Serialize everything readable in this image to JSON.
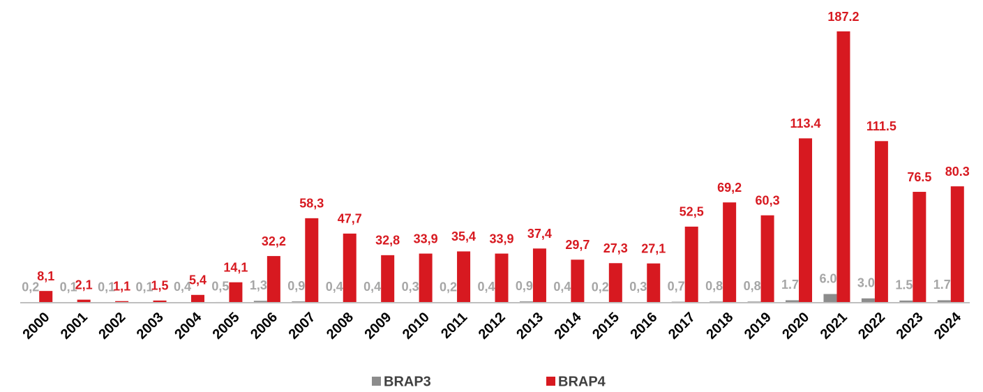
{
  "chart_data": {
    "type": "bar",
    "categories": [
      "2000",
      "2001",
      "2002",
      "2003",
      "2004",
      "2005",
      "2006",
      "2007",
      "2008",
      "2009",
      "2010",
      "2011",
      "2012",
      "2013",
      "2014",
      "2015",
      "2016",
      "2017",
      "2018",
      "2019",
      "2020",
      "2021",
      "2022",
      "2023",
      "2024"
    ],
    "series": [
      {
        "name": "BRAP3",
        "color": "#8c8c8c",
        "label_color": "#a6a6a6",
        "values": [
          0.2,
          0.1,
          0.1,
          0.1,
          0.4,
          0.5,
          1.3,
          0.9,
          0.4,
          0.4,
          0.3,
          0.2,
          0.4,
          0.9,
          0.4,
          0.2,
          0.3,
          0.7,
          0.8,
          0.8,
          1.7,
          6.0,
          3.0,
          1.5,
          1.7
        ],
        "value_labels": [
          "0,2",
          "0,1",
          "0,1",
          "0,1",
          "0,4",
          "0,5",
          "1,3",
          "0,9",
          "0,4",
          "0,4",
          "0,3",
          "0,2",
          "0,4",
          "0,9",
          "0,4",
          "0,2",
          "0,3",
          "0,7",
          "0,8",
          "0,8",
          "1.7",
          "6.0",
          "3.0",
          "1.5",
          "1.7"
        ]
      },
      {
        "name": "BRAP4",
        "color": "#d71920",
        "label_color": "#d71920",
        "values": [
          8.1,
          2.1,
          1.1,
          1.5,
          5.4,
          14.1,
          32.2,
          58.3,
          47.7,
          32.8,
          33.9,
          35.4,
          33.9,
          37.4,
          29.7,
          27.3,
          27.1,
          52.5,
          69.2,
          60.3,
          113.4,
          187.2,
          111.5,
          76.5,
          80.3
        ],
        "value_labels": [
          "8,1",
          "2,1",
          "1,1",
          "1,5",
          "5,4",
          "14,1",
          "32,2",
          "58,3",
          "47,7",
          "32,8",
          "33,9",
          "35,4",
          "33,9",
          "37,4",
          "29,7",
          "27,3",
          "27,1",
          "52,5",
          "69,2",
          "60,3",
          "113.4",
          "187.2",
          "111.5",
          "76.5",
          "80.3"
        ]
      }
    ],
    "legend": "bottom"
  }
}
